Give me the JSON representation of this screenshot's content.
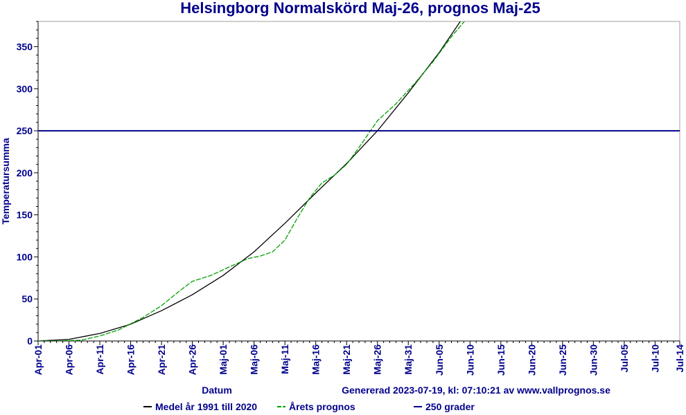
{
  "chart_data": {
    "type": "line",
    "title": "Helsingborg Normalskörd Maj-26, prognos Maj-25",
    "xlabel": "Datum",
    "ylabel": "Temperatursumma",
    "generated": "Genererad 2023-07-19, kl: 07:10:21 av www.vallprognos.se",
    "ylim": [
      0,
      380
    ],
    "yticks": [
      0,
      50,
      100,
      150,
      200,
      250,
      300,
      350
    ],
    "xlim": [
      "2023-04-01",
      "2023-07-14"
    ],
    "xticks": [
      "Apr-01",
      "Apr-06",
      "Apr-11",
      "Apr-16",
      "Apr-21",
      "Apr-26",
      "Maj-01",
      "Maj-06",
      "Maj-11",
      "Maj-16",
      "Maj-21",
      "Maj-26",
      "Maj-31",
      "Jun-05",
      "Jun-10",
      "Jun-15",
      "Jun-20",
      "Jun-25",
      "Jun-30",
      "Jul-05",
      "Jul-10",
      "Jul-14"
    ],
    "grid": false,
    "legend_position": "bottom",
    "series": [
      {
        "name": "Medel år 1991 till 2020",
        "color": "#000000",
        "style": "solid",
        "x": [
          "2023-04-01",
          "2023-04-06",
          "2023-04-11",
          "2023-04-16",
          "2023-04-21",
          "2023-04-26",
          "2023-05-01",
          "2023-05-06",
          "2023-05-11",
          "2023-05-16",
          "2023-05-21",
          "2023-05-26",
          "2023-05-31",
          "2023-06-05",
          "2023-06-10"
        ],
        "values": [
          0,
          2,
          9,
          20,
          36,
          55,
          78,
          106,
          140,
          176,
          211,
          250,
          295,
          343,
          397
        ]
      },
      {
        "name": "Årets prognos",
        "color": "#00a000",
        "style": "dashed",
        "x": [
          "2023-04-01",
          "2023-04-04",
          "2023-04-08",
          "2023-04-11",
          "2023-04-14",
          "2023-04-18",
          "2023-04-21",
          "2023-04-24",
          "2023-04-26",
          "2023-04-29",
          "2023-05-02",
          "2023-05-05",
          "2023-05-07",
          "2023-05-09",
          "2023-05-11",
          "2023-05-13",
          "2023-05-15",
          "2023-05-17",
          "2023-05-19",
          "2023-05-21",
          "2023-05-23",
          "2023-05-26",
          "2023-05-29",
          "2023-06-01",
          "2023-06-04",
          "2023-06-07",
          "2023-06-10"
        ],
        "values": [
          0,
          0,
          1,
          6,
          13,
          28,
          42,
          60,
          71,
          78,
          88,
          98,
          101,
          106,
          120,
          146,
          170,
          188,
          197,
          210,
          230,
          262,
          282,
          306,
          332,
          362,
          388
        ]
      },
      {
        "name": "250 grader",
        "color": "#00008b",
        "style": "solid",
        "x": [
          "2023-04-01",
          "2023-07-14"
        ],
        "values": [
          250,
          250
        ]
      }
    ]
  }
}
